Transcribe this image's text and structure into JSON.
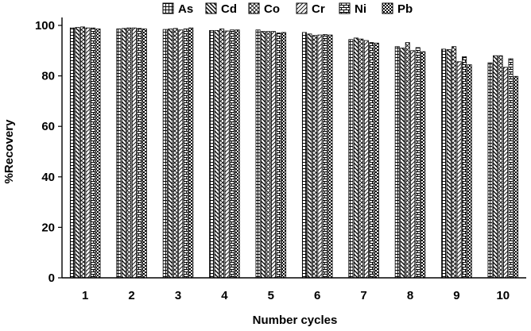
{
  "chart_data": {
    "type": "bar",
    "xlabel": "Number cycles",
    "ylabel": "%Recovery",
    "ylim": [
      0,
      100
    ],
    "yticks": [
      0,
      20,
      40,
      60,
      80,
      100
    ],
    "grid": false,
    "legend_position": "top",
    "categories": [
      "1",
      "2",
      "3",
      "4",
      "5",
      "6",
      "7",
      "8",
      "9",
      "10"
    ],
    "series": [
      {
        "name": "As",
        "pattern": "grid",
        "values": [
          99.0,
          98.6,
          98.4,
          98.0,
          98.2,
          97.2,
          94.4,
          91.6,
          90.6,
          85.2
        ]
      },
      {
        "name": "Cd",
        "pattern": "diag-back",
        "values": [
          99.2,
          98.8,
          98.6,
          98.0,
          97.6,
          96.6,
          95.0,
          91.0,
          90.4,
          88.0
        ]
      },
      {
        "name": "Co",
        "pattern": "cross",
        "values": [
          99.4,
          99.0,
          98.8,
          98.6,
          97.6,
          96.0,
          94.6,
          93.2,
          91.6,
          88.0
        ]
      },
      {
        "name": "Cr",
        "pattern": "diag-fwd",
        "values": [
          99.0,
          99.0,
          98.2,
          97.8,
          97.6,
          96.2,
          94.0,
          90.0,
          85.6,
          83.4
        ]
      },
      {
        "name": "Ni",
        "pattern": "brick",
        "values": [
          99.0,
          98.8,
          98.6,
          98.2,
          97.0,
          96.4,
          93.2,
          91.2,
          87.6,
          86.8
        ]
      },
      {
        "name": "Pb",
        "pattern": "checker",
        "values": [
          98.6,
          98.6,
          99.0,
          98.2,
          97.2,
          96.2,
          93.0,
          89.6,
          84.4,
          79.8
        ]
      }
    ]
  }
}
